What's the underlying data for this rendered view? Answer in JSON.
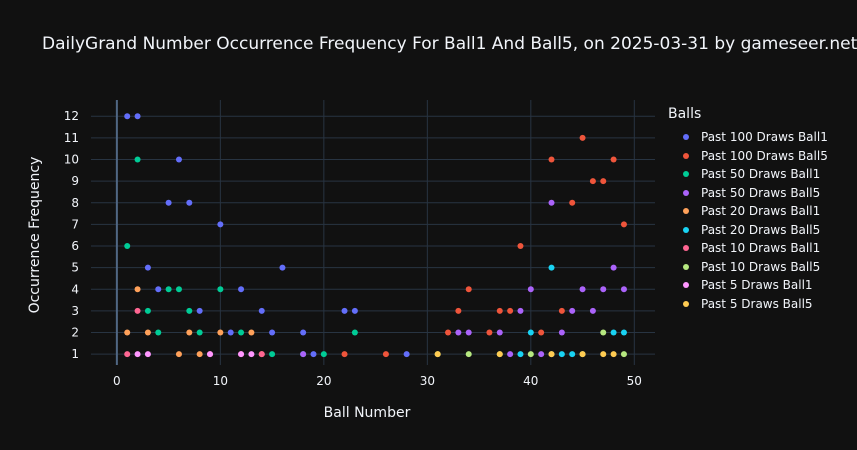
{
  "chart_data": {
    "type": "scatter",
    "title": "DailyGrand Number Occurrence Frequency For Ball1 And Ball5, on 2025-03-31 by gameseer.net",
    "xlabel": "Ball Number",
    "ylabel": "Occurrence Frequency",
    "xlim": [
      -2.5,
      52
    ],
    "ylim": [
      0.5,
      12.75
    ],
    "x_ticks": [
      0,
      10,
      20,
      30,
      40,
      50
    ],
    "y_ticks": [
      1,
      2,
      3,
      4,
      5,
      6,
      7,
      8,
      9,
      10,
      11,
      12
    ],
    "grid": true,
    "legend_title": "Balls",
    "legend_position": "right",
    "series": [
      {
        "name": "Past 100 Draws Ball1",
        "color": "#636efa",
        "x": [
          1,
          2,
          3,
          4,
          5,
          6,
          7,
          8,
          10,
          11,
          12,
          14,
          15,
          16,
          18,
          19,
          22,
          23,
          28
        ],
        "y": [
          12,
          12,
          5,
          4,
          8,
          10,
          8,
          3,
          7,
          2,
          4,
          3,
          2,
          5,
          2,
          1,
          3,
          3,
          1
        ]
      },
      {
        "name": "Past 100 Draws Ball5",
        "color": "#ef553b",
        "x": [
          22,
          26,
          32,
          33,
          34,
          36,
          37,
          38,
          39,
          41,
          42,
          43,
          44,
          45,
          46,
          47,
          48,
          49
        ],
        "y": [
          1,
          1,
          2,
          3,
          4,
          2,
          3,
          3,
          6,
          2,
          10,
          3,
          8,
          11,
          9,
          9,
          10,
          7
        ]
      },
      {
        "name": "Past 50 Draws Ball1",
        "color": "#00cc96",
        "x": [
          1,
          2,
          3,
          4,
          5,
          6,
          7,
          8,
          10,
          12,
          15,
          18,
          20,
          23
        ],
        "y": [
          6,
          10,
          3,
          2,
          4,
          4,
          3,
          2,
          4,
          2,
          1,
          1,
          1,
          2
        ]
      },
      {
        "name": "Past 50 Draws Ball5",
        "color": "#ab63fa",
        "x": [
          18,
          33,
          34,
          37,
          38,
          39,
          40,
          41,
          42,
          43,
          44,
          45,
          46,
          47,
          48,
          49
        ],
        "y": [
          1,
          2,
          2,
          2,
          1,
          3,
          4,
          1,
          8,
          2,
          3,
          4,
          3,
          4,
          5,
          4
        ]
      },
      {
        "name": "Past 20 Draws Ball1",
        "color": "#ffa15a",
        "x": [
          1,
          2,
          3,
          6,
          7,
          8,
          10,
          13,
          14
        ],
        "y": [
          2,
          4,
          2,
          1,
          2,
          1,
          2,
          2,
          1
        ]
      },
      {
        "name": "Past 20 Draws Ball5",
        "color": "#19d3f3",
        "x": [
          39,
          40,
          42,
          43,
          44,
          48,
          49
        ],
        "y": [
          1,
          2,
          5,
          1,
          1,
          2,
          2
        ]
      },
      {
        "name": "Past 10 Draws Ball1",
        "color": "#ff6692",
        "x": [
          1,
          2,
          9,
          12,
          14
        ],
        "y": [
          1,
          3,
          1,
          1,
          1
        ]
      },
      {
        "name": "Past 10 Draws Ball5",
        "color": "#b6e880",
        "x": [
          31,
          34,
          37,
          40,
          42,
          45,
          47,
          49
        ],
        "y": [
          1,
          1,
          1,
          1,
          1,
          1,
          2,
          1
        ]
      },
      {
        "name": "Past 5 Draws Ball1",
        "color": "#ff97ff",
        "x": [
          2,
          3,
          9,
          12,
          13
        ],
        "y": [
          1,
          1,
          1,
          1,
          1
        ]
      },
      {
        "name": "Past 5 Draws Ball5",
        "color": "#fecb52",
        "x": [
          31,
          37,
          42,
          45,
          47,
          48
        ],
        "y": [
          1,
          1,
          1,
          1,
          1,
          1
        ]
      }
    ]
  }
}
